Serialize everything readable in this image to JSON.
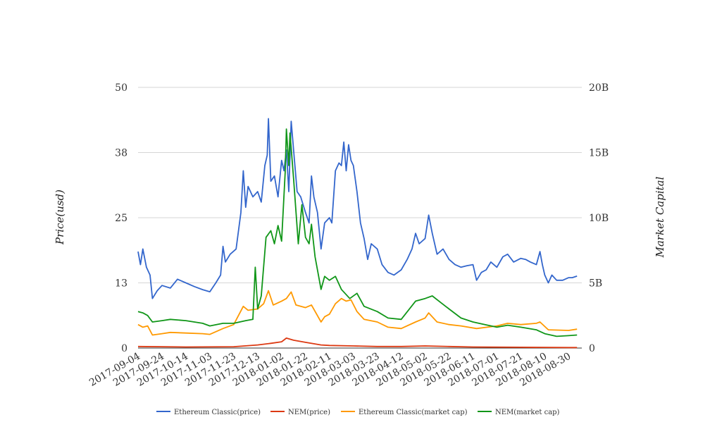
{
  "chart_data": {
    "type": "line",
    "xlabel": "",
    "ylabel_left": "Price(usd)",
    "ylabel_right": "Market Capital",
    "x_ticks": [
      "2017-09-04",
      "2017-09-24",
      "2017-10-14",
      "2017-11-03",
      "2017-11-23",
      "2017-12-13",
      "2018-01-02",
      "2018-01-22",
      "2018-02-11",
      "2018-03-03",
      "2018-03-23",
      "2018-04-12",
      "2018-05-02",
      "2018-05-22",
      "2018-06-11",
      "2018-07-01",
      "2018-07-21",
      "2018-08-10",
      "2018-08-30"
    ],
    "x_range": [
      "2017-09-04",
      "2018-09-10"
    ],
    "y_left": {
      "ticks": [
        0,
        13,
        25,
        38,
        50
      ],
      "range": [
        0,
        50
      ]
    },
    "y_right": {
      "ticks": [
        "0",
        "5B",
        "10B",
        "15B",
        "20B"
      ],
      "tick_values": [
        0,
        5,
        10,
        15,
        20
      ],
      "range": [
        0,
        20
      ],
      "unit": "billions"
    },
    "grid": true,
    "legend_position": "bottom",
    "series": [
      {
        "name": "Ethereum Classic(price)",
        "axis": "left",
        "color": "#3366cc",
        "points": [
          [
            "2017-09-04",
            18.5
          ],
          [
            "2017-09-06",
            16
          ],
          [
            "2017-09-08",
            19
          ],
          [
            "2017-09-11",
            15.5
          ],
          [
            "2017-09-14",
            14
          ],
          [
            "2017-09-16",
            9.5
          ],
          [
            "2017-09-20",
            11
          ],
          [
            "2017-09-24",
            12
          ],
          [
            "2017-10-01",
            11.5
          ],
          [
            "2017-10-07",
            13.2
          ],
          [
            "2017-10-14",
            12.5
          ],
          [
            "2017-10-21",
            11.8
          ],
          [
            "2017-10-28",
            11.2
          ],
          [
            "2017-11-03",
            10.8
          ],
          [
            "2017-11-08",
            12.5
          ],
          [
            "2017-11-12",
            14
          ],
          [
            "2017-11-14",
            19.5
          ],
          [
            "2017-11-16",
            16.5
          ],
          [
            "2017-11-20",
            18
          ],
          [
            "2017-11-25",
            19
          ],
          [
            "2017-11-29",
            26
          ],
          [
            "2017-12-01",
            34
          ],
          [
            "2017-12-03",
            27
          ],
          [
            "2017-12-05",
            31
          ],
          [
            "2017-12-09",
            29
          ],
          [
            "2017-12-13",
            30
          ],
          [
            "2017-12-16",
            28
          ],
          [
            "2017-12-19",
            35
          ],
          [
            "2017-12-21",
            37
          ],
          [
            "2017-12-22",
            44
          ],
          [
            "2017-12-24",
            32
          ],
          [
            "2017-12-27",
            33
          ],
          [
            "2017-12-30",
            29
          ],
          [
            "2018-01-02",
            36
          ],
          [
            "2018-01-04",
            34
          ],
          [
            "2018-01-06",
            38
          ],
          [
            "2018-01-08",
            30
          ],
          [
            "2018-01-10",
            43.5
          ],
          [
            "2018-01-12",
            38
          ],
          [
            "2018-01-15",
            30
          ],
          [
            "2018-01-18",
            29
          ],
          [
            "2018-01-22",
            26
          ],
          [
            "2018-01-25",
            24
          ],
          [
            "2018-01-27",
            33
          ],
          [
            "2018-01-29",
            29
          ],
          [
            "2018-02-01",
            26
          ],
          [
            "2018-02-04",
            19
          ],
          [
            "2018-02-07",
            24
          ],
          [
            "2018-02-11",
            25
          ],
          [
            "2018-02-13",
            24
          ],
          [
            "2018-02-16",
            34
          ],
          [
            "2018-02-19",
            35.5
          ],
          [
            "2018-02-21",
            35
          ],
          [
            "2018-02-23",
            39.5
          ],
          [
            "2018-02-25",
            34
          ],
          [
            "2018-02-27",
            39
          ],
          [
            "2018-03-01",
            36
          ],
          [
            "2018-03-03",
            35
          ],
          [
            "2018-03-06",
            30
          ],
          [
            "2018-03-09",
            24
          ],
          [
            "2018-03-12",
            21
          ],
          [
            "2018-03-15",
            17
          ],
          [
            "2018-03-18",
            20
          ],
          [
            "2018-03-23",
            19
          ],
          [
            "2018-03-27",
            16
          ],
          [
            "2018-04-01",
            14.5
          ],
          [
            "2018-04-06",
            14
          ],
          [
            "2018-04-12",
            15
          ],
          [
            "2018-04-17",
            17
          ],
          [
            "2018-04-21",
            19
          ],
          [
            "2018-04-24",
            22
          ],
          [
            "2018-04-27",
            20
          ],
          [
            "2018-05-02",
            21
          ],
          [
            "2018-05-05",
            25.5
          ],
          [
            "2018-05-08",
            22
          ],
          [
            "2018-05-12",
            18
          ],
          [
            "2018-05-17",
            19
          ],
          [
            "2018-05-22",
            17
          ],
          [
            "2018-05-27",
            16
          ],
          [
            "2018-06-01",
            15.5
          ],
          [
            "2018-06-06",
            15.8
          ],
          [
            "2018-06-11",
            16
          ],
          [
            "2018-06-14",
            13
          ],
          [
            "2018-06-18",
            14.5
          ],
          [
            "2018-06-22",
            15
          ],
          [
            "2018-06-26",
            16.5
          ],
          [
            "2018-07-01",
            15.5
          ],
          [
            "2018-07-06",
            17.5
          ],
          [
            "2018-07-10",
            18
          ],
          [
            "2018-07-15",
            16.5
          ],
          [
            "2018-07-21",
            17.2
          ],
          [
            "2018-07-25",
            17
          ],
          [
            "2018-07-29",
            16.5
          ],
          [
            "2018-08-03",
            16
          ],
          [
            "2018-08-06",
            18.5
          ],
          [
            "2018-08-08",
            16
          ],
          [
            "2018-08-10",
            14
          ],
          [
            "2018-08-13",
            12.5
          ],
          [
            "2018-08-16",
            14
          ],
          [
            "2018-08-20",
            13
          ],
          [
            "2018-08-25",
            13
          ],
          [
            "2018-08-30",
            13.5
          ],
          [
            "2018-09-02",
            13.5
          ],
          [
            "2018-09-06",
            13.8
          ]
        ]
      },
      {
        "name": "NEM(price)",
        "axis": "left",
        "color": "#dc3912",
        "points": [
          [
            "2017-09-04",
            0.3
          ],
          [
            "2017-10-14",
            0.2
          ],
          [
            "2017-11-23",
            0.25
          ],
          [
            "2017-12-13",
            0.6
          ],
          [
            "2017-12-24",
            0.9
          ],
          [
            "2018-01-02",
            1.2
          ],
          [
            "2018-01-06",
            1.9
          ],
          [
            "2018-01-12",
            1.5
          ],
          [
            "2018-01-22",
            1.1
          ],
          [
            "2018-02-04",
            0.6
          ],
          [
            "2018-02-11",
            0.5
          ],
          [
            "2018-03-03",
            0.4
          ],
          [
            "2018-03-23",
            0.3
          ],
          [
            "2018-04-12",
            0.3
          ],
          [
            "2018-05-02",
            0.4
          ],
          [
            "2018-05-22",
            0.3
          ],
          [
            "2018-06-11",
            0.2
          ],
          [
            "2018-07-21",
            0.15
          ],
          [
            "2018-08-30",
            0.1
          ],
          [
            "2018-09-06",
            0.1
          ]
        ]
      },
      {
        "name": "Ethereum Classic(market cap)",
        "axis": "right",
        "color": "#ff9900",
        "points": [
          [
            "2017-09-04",
            1.8
          ],
          [
            "2017-09-08",
            1.6
          ],
          [
            "2017-09-12",
            1.7
          ],
          [
            "2017-09-16",
            1.0
          ],
          [
            "2017-09-24",
            1.1
          ],
          [
            "2017-10-01",
            1.2
          ],
          [
            "2017-10-14",
            1.15
          ],
          [
            "2017-10-28",
            1.1
          ],
          [
            "2017-11-03",
            1.05
          ],
          [
            "2017-11-14",
            1.5
          ],
          [
            "2017-11-23",
            1.8
          ],
          [
            "2017-12-01",
            3.2
          ],
          [
            "2017-12-05",
            2.9
          ],
          [
            "2017-12-13",
            3.0
          ],
          [
            "2017-12-18",
            3.4
          ],
          [
            "2017-12-22",
            4.4
          ],
          [
            "2017-12-26",
            3.3
          ],
          [
            "2018-01-02",
            3.6
          ],
          [
            "2018-01-06",
            3.8
          ],
          [
            "2018-01-10",
            4.3
          ],
          [
            "2018-01-14",
            3.3
          ],
          [
            "2018-01-22",
            3.1
          ],
          [
            "2018-01-27",
            3.3
          ],
          [
            "2018-02-04",
            2.0
          ],
          [
            "2018-02-07",
            2.4
          ],
          [
            "2018-02-11",
            2.6
          ],
          [
            "2018-02-16",
            3.4
          ],
          [
            "2018-02-21",
            3.8
          ],
          [
            "2018-02-25",
            3.6
          ],
          [
            "2018-03-01",
            3.7
          ],
          [
            "2018-03-06",
            2.8
          ],
          [
            "2018-03-12",
            2.2
          ],
          [
            "2018-03-23",
            2.0
          ],
          [
            "2018-04-01",
            1.6
          ],
          [
            "2018-04-12",
            1.5
          ],
          [
            "2018-04-24",
            2.0
          ],
          [
            "2018-05-02",
            2.3
          ],
          [
            "2018-05-05",
            2.7
          ],
          [
            "2018-05-12",
            2.0
          ],
          [
            "2018-05-22",
            1.8
          ],
          [
            "2018-06-01",
            1.7
          ],
          [
            "2018-06-14",
            1.5
          ],
          [
            "2018-07-01",
            1.7
          ],
          [
            "2018-07-10",
            1.9
          ],
          [
            "2018-07-21",
            1.8
          ],
          [
            "2018-08-03",
            1.9
          ],
          [
            "2018-08-06",
            2.0
          ],
          [
            "2018-08-13",
            1.4
          ],
          [
            "2018-08-30",
            1.35
          ],
          [
            "2018-09-06",
            1.45
          ]
        ]
      },
      {
        "name": "NEM(market cap)",
        "axis": "right",
        "color": "#109618",
        "points": [
          [
            "2017-09-04",
            2.8
          ],
          [
            "2017-09-08",
            2.7
          ],
          [
            "2017-09-12",
            2.5
          ],
          [
            "2017-09-16",
            2.0
          ],
          [
            "2017-09-24",
            2.1
          ],
          [
            "2017-10-01",
            2.2
          ],
          [
            "2017-10-14",
            2.1
          ],
          [
            "2017-10-28",
            1.9
          ],
          [
            "2017-11-03",
            1.7
          ],
          [
            "2017-11-14",
            1.9
          ],
          [
            "2017-11-23",
            1.9
          ],
          [
            "2017-12-03",
            2.1
          ],
          [
            "2017-12-09",
            2.2
          ],
          [
            "2017-12-11",
            6.2
          ],
          [
            "2017-12-13",
            3.0
          ],
          [
            "2017-12-16",
            4.0
          ],
          [
            "2017-12-20",
            8.5
          ],
          [
            "2017-12-24",
            9.0
          ],
          [
            "2017-12-27",
            8.0
          ],
          [
            "2017-12-30",
            9.4
          ],
          [
            "2018-01-02",
            8.2
          ],
          [
            "2018-01-05",
            13.5
          ],
          [
            "2018-01-06",
            16.8
          ],
          [
            "2018-01-08",
            14.0
          ],
          [
            "2018-01-09",
            16.5
          ],
          [
            "2018-01-12",
            13.0
          ],
          [
            "2018-01-16",
            8.0
          ],
          [
            "2018-01-19",
            11.0
          ],
          [
            "2018-01-22",
            8.5
          ],
          [
            "2018-01-25",
            8.0
          ],
          [
            "2018-01-27",
            9.5
          ],
          [
            "2018-01-30",
            7.0
          ],
          [
            "2018-02-04",
            4.5
          ],
          [
            "2018-02-07",
            5.5
          ],
          [
            "2018-02-11",
            5.2
          ],
          [
            "2018-02-16",
            5.5
          ],
          [
            "2018-02-21",
            4.5
          ],
          [
            "2018-02-28",
            3.8
          ],
          [
            "2018-03-06",
            4.2
          ],
          [
            "2018-03-12",
            3.2
          ],
          [
            "2018-03-23",
            2.8
          ],
          [
            "2018-04-01",
            2.3
          ],
          [
            "2018-04-12",
            2.2
          ],
          [
            "2018-04-24",
            3.6
          ],
          [
            "2018-05-02",
            3.8
          ],
          [
            "2018-05-08",
            4.0
          ],
          [
            "2018-05-15",
            3.5
          ],
          [
            "2018-05-22",
            3.0
          ],
          [
            "2018-06-01",
            2.3
          ],
          [
            "2018-06-11",
            2.0
          ],
          [
            "2018-06-21",
            1.8
          ],
          [
            "2018-07-01",
            1.6
          ],
          [
            "2018-07-10",
            1.75
          ],
          [
            "2018-07-21",
            1.6
          ],
          [
            "2018-08-03",
            1.4
          ],
          [
            "2018-08-10",
            1.1
          ],
          [
            "2018-08-20",
            0.9
          ],
          [
            "2018-08-30",
            0.95
          ],
          [
            "2018-09-06",
            1.0
          ]
        ]
      }
    ]
  }
}
